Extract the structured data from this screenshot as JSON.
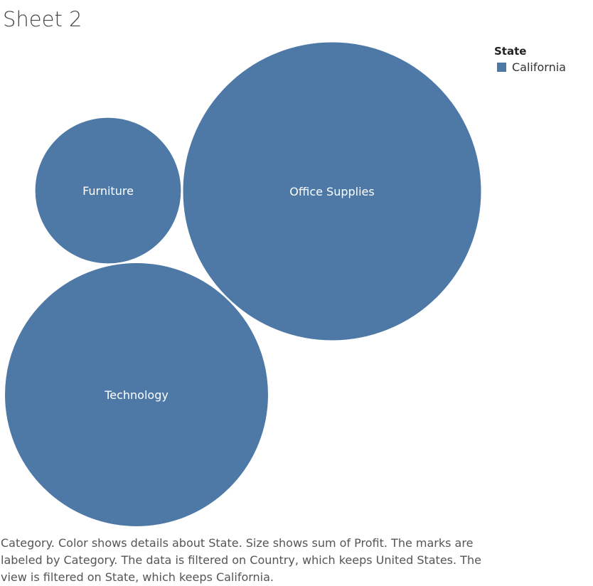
{
  "sheet": {
    "title": "Sheet 2"
  },
  "legend": {
    "title": "State",
    "items": [
      {
        "label": "California",
        "color": "#4e79a7"
      }
    ]
  },
  "chart_data": {
    "type": "bubble",
    "title": "Sheet 2",
    "measure": "Sum of Profit",
    "color_by": "State",
    "label_by": "Category",
    "color": "#4e79a7",
    "bubbles": [
      {
        "label": "Furniture",
        "state": "California",
        "relative_size": 0.24
      },
      {
        "label": "Office Supplies",
        "state": "California",
        "relative_size": 1.0
      },
      {
        "label": "Technology",
        "state": "California",
        "relative_size": 0.78
      }
    ],
    "legend_position": "top-right"
  },
  "caption": {
    "text": "Category.  Color shows details about State.  Size shows sum of Profit.  The marks are labeled by Category. The data is filtered on Country, which keeps United States. The view is filtered on State, which keeps California."
  }
}
